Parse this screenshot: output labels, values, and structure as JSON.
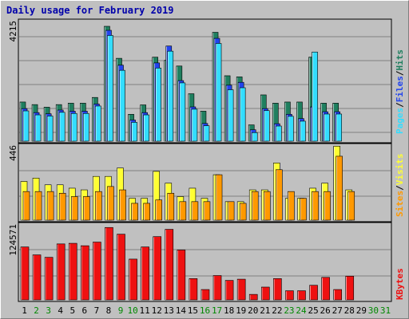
{
  "title": "Daily usage for February 2019",
  "colors": {
    "hits": "#1f7f5f",
    "files": "#2244ee",
    "pages": "#33ddff",
    "visits": "#ffff33",
    "sites": "#ff9900",
    "kbytes": "#ee1111",
    "weekday_label": "#000000",
    "weekend_label": "#008800"
  },
  "chart_data": [
    {
      "type": "bar",
      "name": "hits-files-pages",
      "ymax_label": "4215",
      "ymax": 4215,
      "legend": [
        "Pages",
        "/",
        "Files",
        "/",
        "Hits"
      ],
      "categories": [
        "1",
        "2",
        "3",
        "4",
        "5",
        "6",
        "7",
        "8",
        "9",
        "10",
        "11",
        "12",
        "13",
        "14",
        "15",
        "16",
        "17",
        "18",
        "19",
        "20",
        "21",
        "22",
        "23",
        "24",
        "25",
        "26",
        "27",
        "28"
      ],
      "series": [
        {
          "name": "Hits",
          "values": [
            1370,
            1280,
            1190,
            1280,
            1330,
            1330,
            1530,
            4020,
            2900,
            940,
            1270,
            2940,
            2830,
            2630,
            1660,
            1050,
            3810,
            2290,
            2250,
            570,
            1620,
            1330,
            1370,
            1370,
            2940,
            1330,
            1330,
            0
          ]
        },
        {
          "name": "Files",
          "values": [
            1140,
            1000,
            960,
            1090,
            1050,
            1050,
            1300,
            3880,
            2660,
            740,
            1000,
            2740,
            3330,
            2120,
            1200,
            620,
            3600,
            1960,
            2060,
            400,
            1140,
            610,
            940,
            790,
            1200,
            1030,
            1030,
            0
          ]
        },
        {
          "name": "Pages",
          "values": [
            1060,
            920,
            880,
            1010,
            970,
            970,
            1230,
            3700,
            2480,
            660,
            920,
            2560,
            3150,
            2040,
            1120,
            540,
            3420,
            1800,
            1870,
            300,
            1070,
            530,
            870,
            700,
            3120,
            950,
            950,
            0
          ]
        }
      ]
    },
    {
      "type": "bar",
      "name": "visits-sites",
      "ymax_label": "446",
      "ymax": 446,
      "legend": [
        "Sites",
        "/",
        "Visits"
      ],
      "categories": [
        "1",
        "2",
        "3",
        "4",
        "5",
        "6",
        "7",
        "8",
        "9",
        "10",
        "11",
        "12",
        "13",
        "14",
        "15",
        "16",
        "17",
        "18",
        "19",
        "20",
        "21",
        "22",
        "23",
        "24",
        "25",
        "26",
        "27",
        "28"
      ],
      "series": [
        {
          "name": "Visits",
          "values": [
            230,
            250,
            210,
            210,
            190,
            180,
            260,
            260,
            310,
            130,
            130,
            290,
            220,
            140,
            190,
            130,
            270,
            110,
            110,
            180,
            180,
            340,
            130,
            130,
            190,
            220,
            440,
            180
          ]
        },
        {
          "name": "Sites",
          "values": [
            170,
            170,
            170,
            160,
            140,
            140,
            170,
            200,
            180,
            100,
            100,
            120,
            160,
            110,
            110,
            110,
            270,
            110,
            100,
            170,
            170,
            300,
            170,
            130,
            170,
            170,
            380,
            170
          ]
        }
      ]
    },
    {
      "type": "bar",
      "name": "kbytes",
      "ymax_label": "124571",
      "ymax": 124571,
      "legend": [
        "KBytes"
      ],
      "categories": [
        "1",
        "2",
        "3",
        "4",
        "5",
        "6",
        "7",
        "8",
        "9",
        "10",
        "11",
        "12",
        "13",
        "14",
        "15",
        "16",
        "17",
        "18",
        "19",
        "20",
        "21",
        "22",
        "23",
        "24",
        "25",
        "26",
        "27",
        "28"
      ],
      "series": [
        {
          "name": "KBytes",
          "values": [
            87000,
            74000,
            70000,
            92000,
            93000,
            89000,
            95000,
            119000,
            108000,
            67000,
            87000,
            104000,
            116000,
            82000,
            35000,
            17000,
            40000,
            32000,
            34000,
            9000,
            21000,
            35000,
            15000,
            15000,
            24000,
            37000,
            17000,
            39000
          ]
        }
      ]
    }
  ],
  "days": [
    "1",
    "2",
    "3",
    "4",
    "5",
    "6",
    "7",
    "8",
    "9",
    "10",
    "11",
    "12",
    "13",
    "14",
    "15",
    "16",
    "17",
    "18",
    "19",
    "20",
    "21",
    "22",
    "23",
    "24",
    "25",
    "26",
    "27",
    "28",
    "29",
    "30",
    "31"
  ],
  "weekend_days": [
    2,
    3,
    9,
    10,
    16,
    17,
    23,
    24,
    30,
    31
  ]
}
